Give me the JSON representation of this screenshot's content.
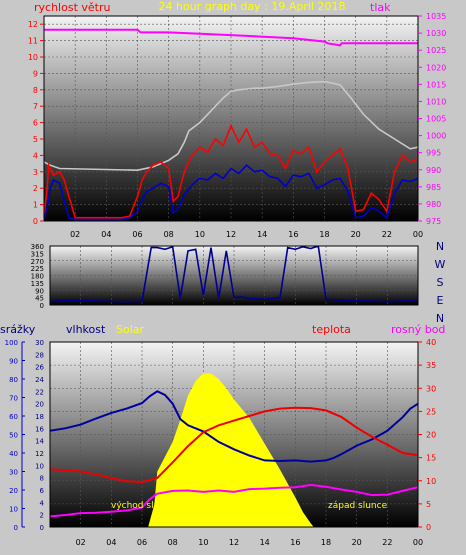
{
  "chart_data": [
    {
      "type": "line",
      "title": "24 hour graph day : 19.April 2018",
      "left_axis_label": "rychlost větru",
      "right_axis_label": "tlak",
      "x_ticks": [
        "02",
        "04",
        "06",
        "08",
        "10",
        "12",
        "14",
        "16",
        "18",
        "20",
        "22",
        "00"
      ],
      "y_left": {
        "range": [
          0,
          12.5
        ],
        "ticks": [
          0,
          1,
          2,
          3,
          4,
          5,
          6,
          7,
          8,
          9,
          10,
          11,
          12
        ]
      },
      "y_right": {
        "range": [
          975,
          1035
        ],
        "ticks": [
          975,
          980,
          985,
          990,
          995,
          1000,
          1005,
          1010,
          1015,
          1020,
          1025,
          1030,
          1035
        ]
      },
      "colors": {
        "pressure": "#ff00ff",
        "gust": "#ff0000",
        "wind": "#0000cc",
        "light_trace": "#c8c8c8",
        "axis_left": "#ff0000",
        "axis_right": "#ff00ff"
      },
      "series": [
        {
          "key": "pressure",
          "axis": "right",
          "x": [
            0,
            4,
            6,
            6.2,
            8,
            12,
            16,
            18,
            18.2,
            19,
            19.1,
            24
          ],
          "values": [
            1031,
            1031,
            1031,
            1030.2,
            1030.2,
            1029.4,
            1028.5,
            1027.5,
            1027,
            1026.4,
            1027,
            1027
          ]
        },
        {
          "key": "light_trace",
          "axis": "left",
          "x": [
            0,
            0.4,
            1,
            6,
            7,
            8,
            8.6,
            9,
            9.3,
            10,
            10.5,
            11,
            11.5,
            12,
            12.5,
            13,
            13.5,
            14,
            15,
            16,
            17,
            18,
            19,
            19.7,
            20.5,
            21.5,
            22.5,
            23.5,
            24
          ],
          "values": [
            3.6,
            3.4,
            3.2,
            3.1,
            3.3,
            3.7,
            4.1,
            4.8,
            5.5,
            6.0,
            6.5,
            7.0,
            7.5,
            7.9,
            8.0,
            8.05,
            8.1,
            8.1,
            8.2,
            8.35,
            8.45,
            8.5,
            8.3,
            7.5,
            6.5,
            5.6,
            5.0,
            4.4,
            4.5
          ]
        },
        {
          "key": "gust",
          "axis": "left",
          "x": [
            0,
            0.2,
            0.3,
            0.6,
            1,
            1.3,
            1.6,
            2,
            3,
            5,
            5.5,
            6,
            6.3,
            6.6,
            7,
            7.5,
            8,
            8.3,
            8.6,
            9,
            9.5,
            10,
            10.5,
            11,
            11.5,
            12,
            12.5,
            13,
            13.5,
            14,
            14.5,
            15,
            15.5,
            16,
            16.5,
            17,
            17.5,
            18,
            18.5,
            19,
            19.5,
            20,
            20.5,
            21,
            21.5,
            22,
            22.5,
            23,
            23.5,
            24
          ],
          "values": [
            0.3,
            2,
            3.4,
            2.8,
            3,
            2.5,
            1.5,
            0.2,
            0.2,
            0.2,
            0.3,
            1.5,
            2.5,
            3,
            3.4,
            3.6,
            3.2,
            1.2,
            1.5,
            3,
            4,
            4.5,
            4.2,
            5,
            4.6,
            5.8,
            4.8,
            5.6,
            4.5,
            4.8,
            4.1,
            4,
            3.2,
            4.3,
            4.1,
            4.5,
            3,
            3.6,
            4,
            4.4,
            3.2,
            0.6,
            0.7,
            1.7,
            1.3,
            0.6,
            3,
            4,
            3.6,
            3.8
          ]
        },
        {
          "key": "wind",
          "axis": "left",
          "x": [
            0,
            0.2,
            0.4,
            0.6,
            1,
            1.3,
            1.6,
            2,
            3,
            5,
            5.5,
            6,
            6.3,
            6.6,
            7,
            7.5,
            8,
            8.3,
            8.6,
            9,
            9.5,
            10,
            10.5,
            11,
            11.5,
            12,
            12.5,
            13,
            13.5,
            14,
            14.5,
            15,
            15.5,
            16,
            16.5,
            17,
            17.5,
            18,
            18.5,
            19,
            19.5,
            20,
            20.5,
            21,
            21.5,
            22,
            22.5,
            23,
            23.5,
            24
          ],
          "values": [
            0.1,
            0.8,
            2,
            2.5,
            2.3,
            1.2,
            0.2,
            0.1,
            0.1,
            0.1,
            0.2,
            0.6,
            1.3,
            1.8,
            2,
            2.3,
            2.1,
            0.5,
            0.7,
            1.6,
            2.2,
            2.6,
            2.5,
            2.9,
            2.6,
            3.2,
            2.9,
            3.4,
            3,
            3.1,
            2.7,
            2.6,
            2.1,
            2.8,
            2.7,
            2.9,
            2,
            2.2,
            2.5,
            2.6,
            1.8,
            0.2,
            0.3,
            0.8,
            0.6,
            0.2,
            1.7,
            2.5,
            2.4,
            2.6
          ]
        }
      ]
    },
    {
      "type": "line",
      "x_ticks": [
        "02",
        "04",
        "06",
        "08",
        "10",
        "12",
        "14",
        "16",
        "18",
        "20",
        "22",
        "00"
      ],
      "y_left": {
        "range": [
          0,
          360
        ],
        "ticks": [
          0,
          45,
          90,
          135,
          180,
          225,
          270,
          315,
          360
        ]
      },
      "compass_labels": [
        "N",
        "W",
        "S",
        "E",
        "N"
      ],
      "colors": {
        "direction": "#000090",
        "compass": "#000080"
      },
      "series": [
        {
          "key": "wind_direction",
          "x": [
            0,
            1,
            3,
            5,
            6,
            6.6,
            7,
            7.5,
            8,
            8.5,
            9,
            9.5,
            10,
            10.5,
            11,
            11.5,
            12,
            12.5,
            13,
            14,
            15,
            15.5,
            16,
            16.5,
            17,
            17.5,
            18,
            19,
            20,
            21,
            22,
            23,
            24
          ],
          "values": [
            20,
            30,
            25,
            20,
            22,
            350,
            350,
            340,
            355,
            40,
            330,
            340,
            60,
            350,
            40,
            330,
            45,
            50,
            40,
            35,
            45,
            350,
            340,
            355,
            345,
            360,
            35,
            30,
            25,
            25,
            20,
            25,
            25
          ]
        }
      ]
    },
    {
      "type": "line",
      "x_ticks": [
        "02",
        "04",
        "06",
        "08",
        "10",
        "12",
        "14",
        "16",
        "18",
        "20",
        "22",
        "00"
      ],
      "labels": {
        "precip": "srážky",
        "humidity": "vlhkost",
        "solar": "Solar",
        "temperature": "teplota",
        "dewpoint": "rosný bod",
        "sunrise": "východ slunce",
        "sunset": "západ slunce"
      },
      "y_axes": {
        "precip": {
          "range": [
            0,
            100
          ],
          "ticks": [
            0,
            10,
            20,
            30,
            40,
            50,
            60,
            70,
            80,
            90,
            100
          ]
        },
        "humidity": {
          "range": [
            0,
            30
          ],
          "ticks": [
            0,
            2,
            4,
            6,
            8,
            10,
            12,
            14,
            16,
            18,
            20,
            22,
            24,
            26,
            28,
            30
          ]
        },
        "temperature": {
          "range": [
            0,
            40
          ],
          "ticks": [
            0,
            5,
            10,
            15,
            20,
            25,
            30,
            35,
            40
          ]
        }
      },
      "sunrise_hour": 7.0,
      "sunset_hour": 17.0,
      "colors": {
        "humidity": "#0000a0",
        "temperature": "#ee0000",
        "dewpoint": "#ff00ff",
        "solar": "#ffff00",
        "precip_axis": "#0000cc",
        "humidity_axis": "#000080",
        "temperature_axis": "#ff0000",
        "sunrise_label": "#ffff00"
      },
      "series": [
        {
          "key": "humidity",
          "axis": "humidity",
          "x": [
            0,
            1,
            2,
            3,
            4,
            5,
            6,
            6.5,
            7,
            7.5,
            8,
            8.5,
            9,
            10,
            11,
            12,
            13,
            14,
            15,
            16,
            17,
            18,
            18.5,
            19,
            20,
            21,
            22,
            23,
            23.5,
            24
          ],
          "values": [
            15.6,
            16,
            16.6,
            17.6,
            18.5,
            19.2,
            20.1,
            21.2,
            22,
            21.4,
            20,
            17.5,
            16.5,
            15.5,
            13.8,
            12.6,
            11.6,
            10.8,
            10.7,
            10.8,
            10.6,
            10.8,
            11.2,
            11.8,
            13.2,
            14.2,
            15.6,
            17.8,
            19.2,
            20
          ]
        },
        {
          "key": "temperature",
          "axis": "temperature",
          "x": [
            0,
            1,
            2,
            3,
            4,
            5,
            6,
            7,
            8,
            9,
            10,
            11,
            12,
            13,
            14,
            15,
            16,
            17,
            18,
            19,
            20,
            21,
            22,
            23,
            24
          ],
          "values": [
            12.5,
            12.3,
            12,
            11.4,
            10.6,
            9.9,
            9.7,
            10.6,
            14,
            17.5,
            20.5,
            22,
            23,
            24,
            25,
            25.6,
            25.8,
            25.7,
            25.2,
            23.8,
            21.5,
            19.5,
            17.8,
            16,
            15.5
          ]
        },
        {
          "key": "dewpoint",
          "axis": "temperature",
          "x": [
            0,
            1,
            2,
            3,
            4,
            5,
            6,
            6.5,
            7,
            7.5,
            8,
            9,
            10,
            11,
            12,
            13,
            14,
            15,
            16,
            17,
            18,
            19,
            20,
            21,
            22,
            23,
            24
          ],
          "values": [
            2.3,
            2.6,
            3,
            3.1,
            3.3,
            3.6,
            4.2,
            6,
            7.2,
            7.5,
            7.8,
            7.9,
            7.6,
            7.9,
            7.6,
            8.2,
            8.3,
            8.5,
            8.6,
            9.1,
            8.7,
            8.1,
            7.6,
            6.9,
            7,
            7.8,
            8.6
          ]
        },
        {
          "key": "solar",
          "axis": "precip",
          "x": [
            6.4,
            6.8,
            7,
            7.5,
            8,
            8.5,
            9,
            9.5,
            10,
            10.5,
            11,
            11.5,
            12,
            13,
            14,
            15,
            16,
            16.5,
            17,
            17.2
          ],
          "values": [
            0,
            12,
            30,
            38,
            46,
            58,
            71,
            79,
            83,
            83,
            80,
            75,
            69,
            59,
            45,
            31,
            16,
            8,
            2,
            0
          ]
        }
      ]
    }
  ]
}
